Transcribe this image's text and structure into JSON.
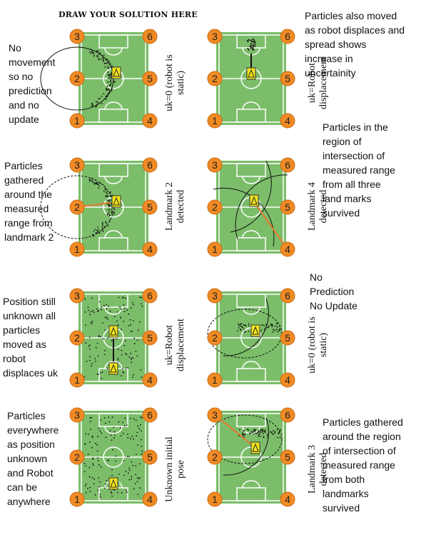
{
  "header": {
    "title": "DRAW YOUR SOLUTION HERE"
  },
  "landmark_numbers": [
    "1",
    "2",
    "3",
    "4",
    "5",
    "6"
  ],
  "colors": {
    "grass": "#7cbd6a",
    "landmark": "#f08a24",
    "robot": "#f2e41c",
    "range_line": "#e8782e"
  },
  "steps": {
    "unknown_pose": {
      "caption": "Unknown initial\npose",
      "note": "Particles\neverywhere\nas position\nunknown\nand Robot\ncan be\nanywhere"
    },
    "robot_displacement_1": {
      "caption": "uk=Robot\ndisplacement",
      "note": "Position still\nunknown all\nparticles\nmoved as\nrobot\ndisplaces uk"
    },
    "landmark2": {
      "caption": "Landmark 2\ndetected",
      "note": "Particles\ngathered\naround the\nmeasured\nrange from\nlandmark 2"
    },
    "static_1": {
      "caption": "uk=0 (robot is\nstatic)",
      "note": "No\nmovement\nso no\nprediction\nand no\nupdate"
    },
    "landmark3": {
      "caption": "Landmark 3\ndetected",
      "note": "Particles gathered\naround the region\nof intersection of\nmeasured range\nfrom both\nlandmarks\nsurvived"
    },
    "static_2": {
      "caption": "uk=0 (robot is\nstatic)",
      "note": "No\nPrediction\nNo Update"
    },
    "landmark4": {
      "caption": "Landmark 4\ndetected",
      "note": "Particles in the\nregion of\nintersection of\nmeasured range\nfrom all three\nland marks\nsurvived"
    },
    "robot_displacement_2": {
      "caption": "uk=Robot\ndisplacement",
      "note": "Particles also moved\nas robot displaces and\nspread shows\nincrease in\nuncertainity"
    }
  }
}
